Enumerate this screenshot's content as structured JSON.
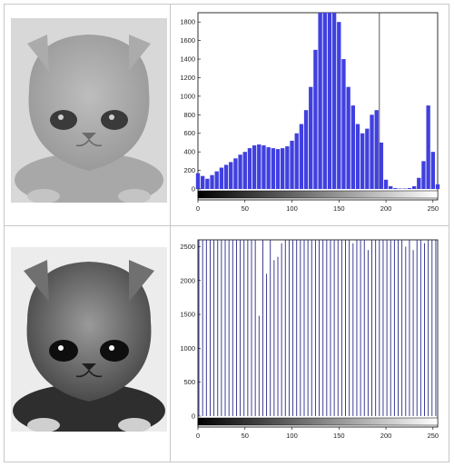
{
  "figure": {
    "caption": ""
  },
  "images": [
    {
      "tone": "low-contrast grey kitten photo",
      "colors": {
        "bg": "#dcdcdc",
        "fur": "#a9a9a9",
        "shadow": "#8a8a8a",
        "eye": "#2a2a2a"
      }
    },
    {
      "tone": "high-contrast grey kitten photo",
      "colors": {
        "bg": "#e9e9e9",
        "fur": "#7a7a7a",
        "shadow": "#2f2f2f",
        "eye": "#111111"
      }
    }
  ],
  "chart_data": [
    {
      "type": "bar",
      "title": "",
      "xlabel": "",
      "ylabel": "",
      "xlim": [
        0,
        255
      ],
      "ylim": [
        0,
        1900
      ],
      "xticks": [
        0,
        50,
        100,
        150,
        200,
        250
      ],
      "yticks": [
        0,
        200,
        400,
        600,
        800,
        1000,
        1200,
        1400,
        1600,
        1800
      ],
      "bar_color": "#4040e0",
      "grid": false,
      "legend": "none",
      "marker": {
        "x": 193
      },
      "series": [
        {
          "x": [
            0,
            5,
            10,
            15,
            20,
            25,
            30,
            35,
            40,
            45,
            50,
            55,
            60,
            65,
            70,
            75,
            80,
            85,
            90,
            95,
            100,
            105,
            110,
            115,
            120,
            125,
            130,
            135,
            140,
            145,
            150,
            155,
            160,
            165,
            170,
            175,
            180,
            185,
            190,
            195,
            200,
            205,
            210,
            215,
            220,
            225,
            230,
            235,
            240,
            245,
            250,
            255
          ],
          "values": [
            170,
            140,
            110,
            150,
            190,
            230,
            260,
            290,
            330,
            370,
            400,
            440,
            470,
            480,
            470,
            450,
            440,
            430,
            440,
            460,
            520,
            600,
            700,
            850,
            1100,
            1500,
            1900,
            1900,
            1900,
            1900,
            1800,
            1400,
            1100,
            900,
            700,
            600,
            650,
            800,
            850,
            500,
            100,
            30,
            10,
            5,
            5,
            10,
            30,
            120,
            300,
            900,
            400,
            50
          ]
        }
      ]
    },
    {
      "type": "bar",
      "title": "",
      "xlabel": "",
      "ylabel": "",
      "xlim": [
        0,
        255
      ],
      "ylim": [
        0,
        2600
      ],
      "xticks": [
        0,
        50,
        100,
        150,
        200,
        250
      ],
      "yticks": [
        0,
        500,
        1000,
        1500,
        2000,
        2500
      ],
      "bar_color": "#2a2a8a",
      "grid": false,
      "legend": "none",
      "series": [
        {
          "x": [
            1,
            5,
            9,
            13,
            17,
            21,
            25,
            29,
            33,
            37,
            41,
            45,
            49,
            53,
            57,
            61,
            65,
            69,
            73,
            77,
            81,
            85,
            89,
            93,
            97,
            101,
            105,
            109,
            113,
            117,
            121,
            125,
            129,
            133,
            137,
            141,
            145,
            149,
            153,
            157,
            161,
            165,
            169,
            173,
            177,
            181,
            185,
            189,
            193,
            197,
            201,
            205,
            209,
            213,
            217,
            221,
            225,
            229,
            233,
            237,
            241,
            245,
            249,
            253
          ],
          "values": [
            2600,
            2600,
            2600,
            2600,
            2600,
            2600,
            2600,
            2600,
            2600,
            2600,
            2600,
            2600,
            2600,
            2600,
            2600,
            2600,
            1480,
            2600,
            2100,
            2600,
            2300,
            2350,
            2550,
            2600,
            2600,
            2600,
            2600,
            2600,
            2600,
            2600,
            2600,
            2600,
            2600,
            2600,
            2600,
            2600,
            2600,
            2600,
            2600,
            2600,
            2600,
            2550,
            2600,
            2600,
            2600,
            2450,
            2600,
            2600,
            2600,
            2600,
            2600,
            2600,
            2600,
            2600,
            2600,
            2500,
            2600,
            2450,
            2600,
            2600,
            2550,
            2600,
            2600,
            2600
          ]
        }
      ]
    }
  ]
}
